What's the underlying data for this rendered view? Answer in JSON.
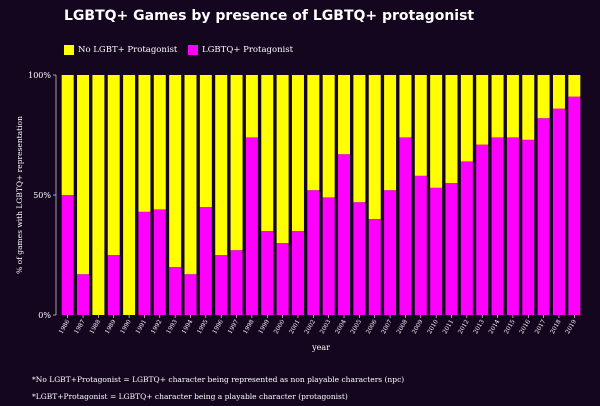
{
  "title": "LGBTQ+ Games by presence of LGBTQ+ protagonist",
  "notes": [
    "*No LGBT+Protagonist = LGBTQ+ character being represented as non playable characters (npc)",
    "*LGBT+Protagonist = LGBTQ+ character being a playable character (protagonist)"
  ],
  "chart_data": {
    "type": "bar",
    "stacked": true,
    "title": "LGBTQ+ Games by presence of LGBTQ+ protagonist",
    "xlabel": "year",
    "ylabel": "% of games with LGBTQ+ representation",
    "ylim": [
      0,
      100
    ],
    "yticks": [
      "0%",
      "50%",
      "100%"
    ],
    "grid": false,
    "legend_position": "top-left",
    "categories": [
      "1986",
      "1987",
      "1988",
      "1989",
      "1990",
      "1991",
      "1992",
      "1993",
      "1994",
      "1995",
      "1996",
      "1997",
      "1998",
      "1999",
      "2000",
      "2001",
      "2002",
      "2003",
      "2004",
      "2005",
      "2006",
      "2007",
      "2008",
      "2009",
      "2010",
      "2011",
      "2012",
      "2013",
      "2014",
      "2015",
      "2016",
      "2017",
      "2018",
      "2019"
    ],
    "series": [
      {
        "name": "LGBTQ+ Protagonist",
        "color": "#ff00ff",
        "values": [
          50,
          17,
          0,
          25,
          0,
          43,
          44,
          20,
          17,
          45,
          25,
          27,
          74,
          35,
          30,
          35,
          52,
          49,
          67,
          47,
          40,
          52,
          74,
          58,
          53,
          55,
          64,
          71,
          74,
          74,
          73,
          82,
          86,
          91
        ]
      },
      {
        "name": "No LGBT+ Protagonist",
        "color": "#ffff00",
        "values": [
          50,
          83,
          100,
          75,
          100,
          57,
          56,
          80,
          83,
          55,
          75,
          73,
          26,
          65,
          70,
          65,
          48,
          51,
          33,
          53,
          60,
          48,
          26,
          42,
          47,
          45,
          36,
          29,
          26,
          26,
          27,
          18,
          14,
          9
        ]
      }
    ],
    "legend_order": [
      "No LGBT+ Protagonist",
      "LGBTQ+ Protagonist"
    ]
  }
}
